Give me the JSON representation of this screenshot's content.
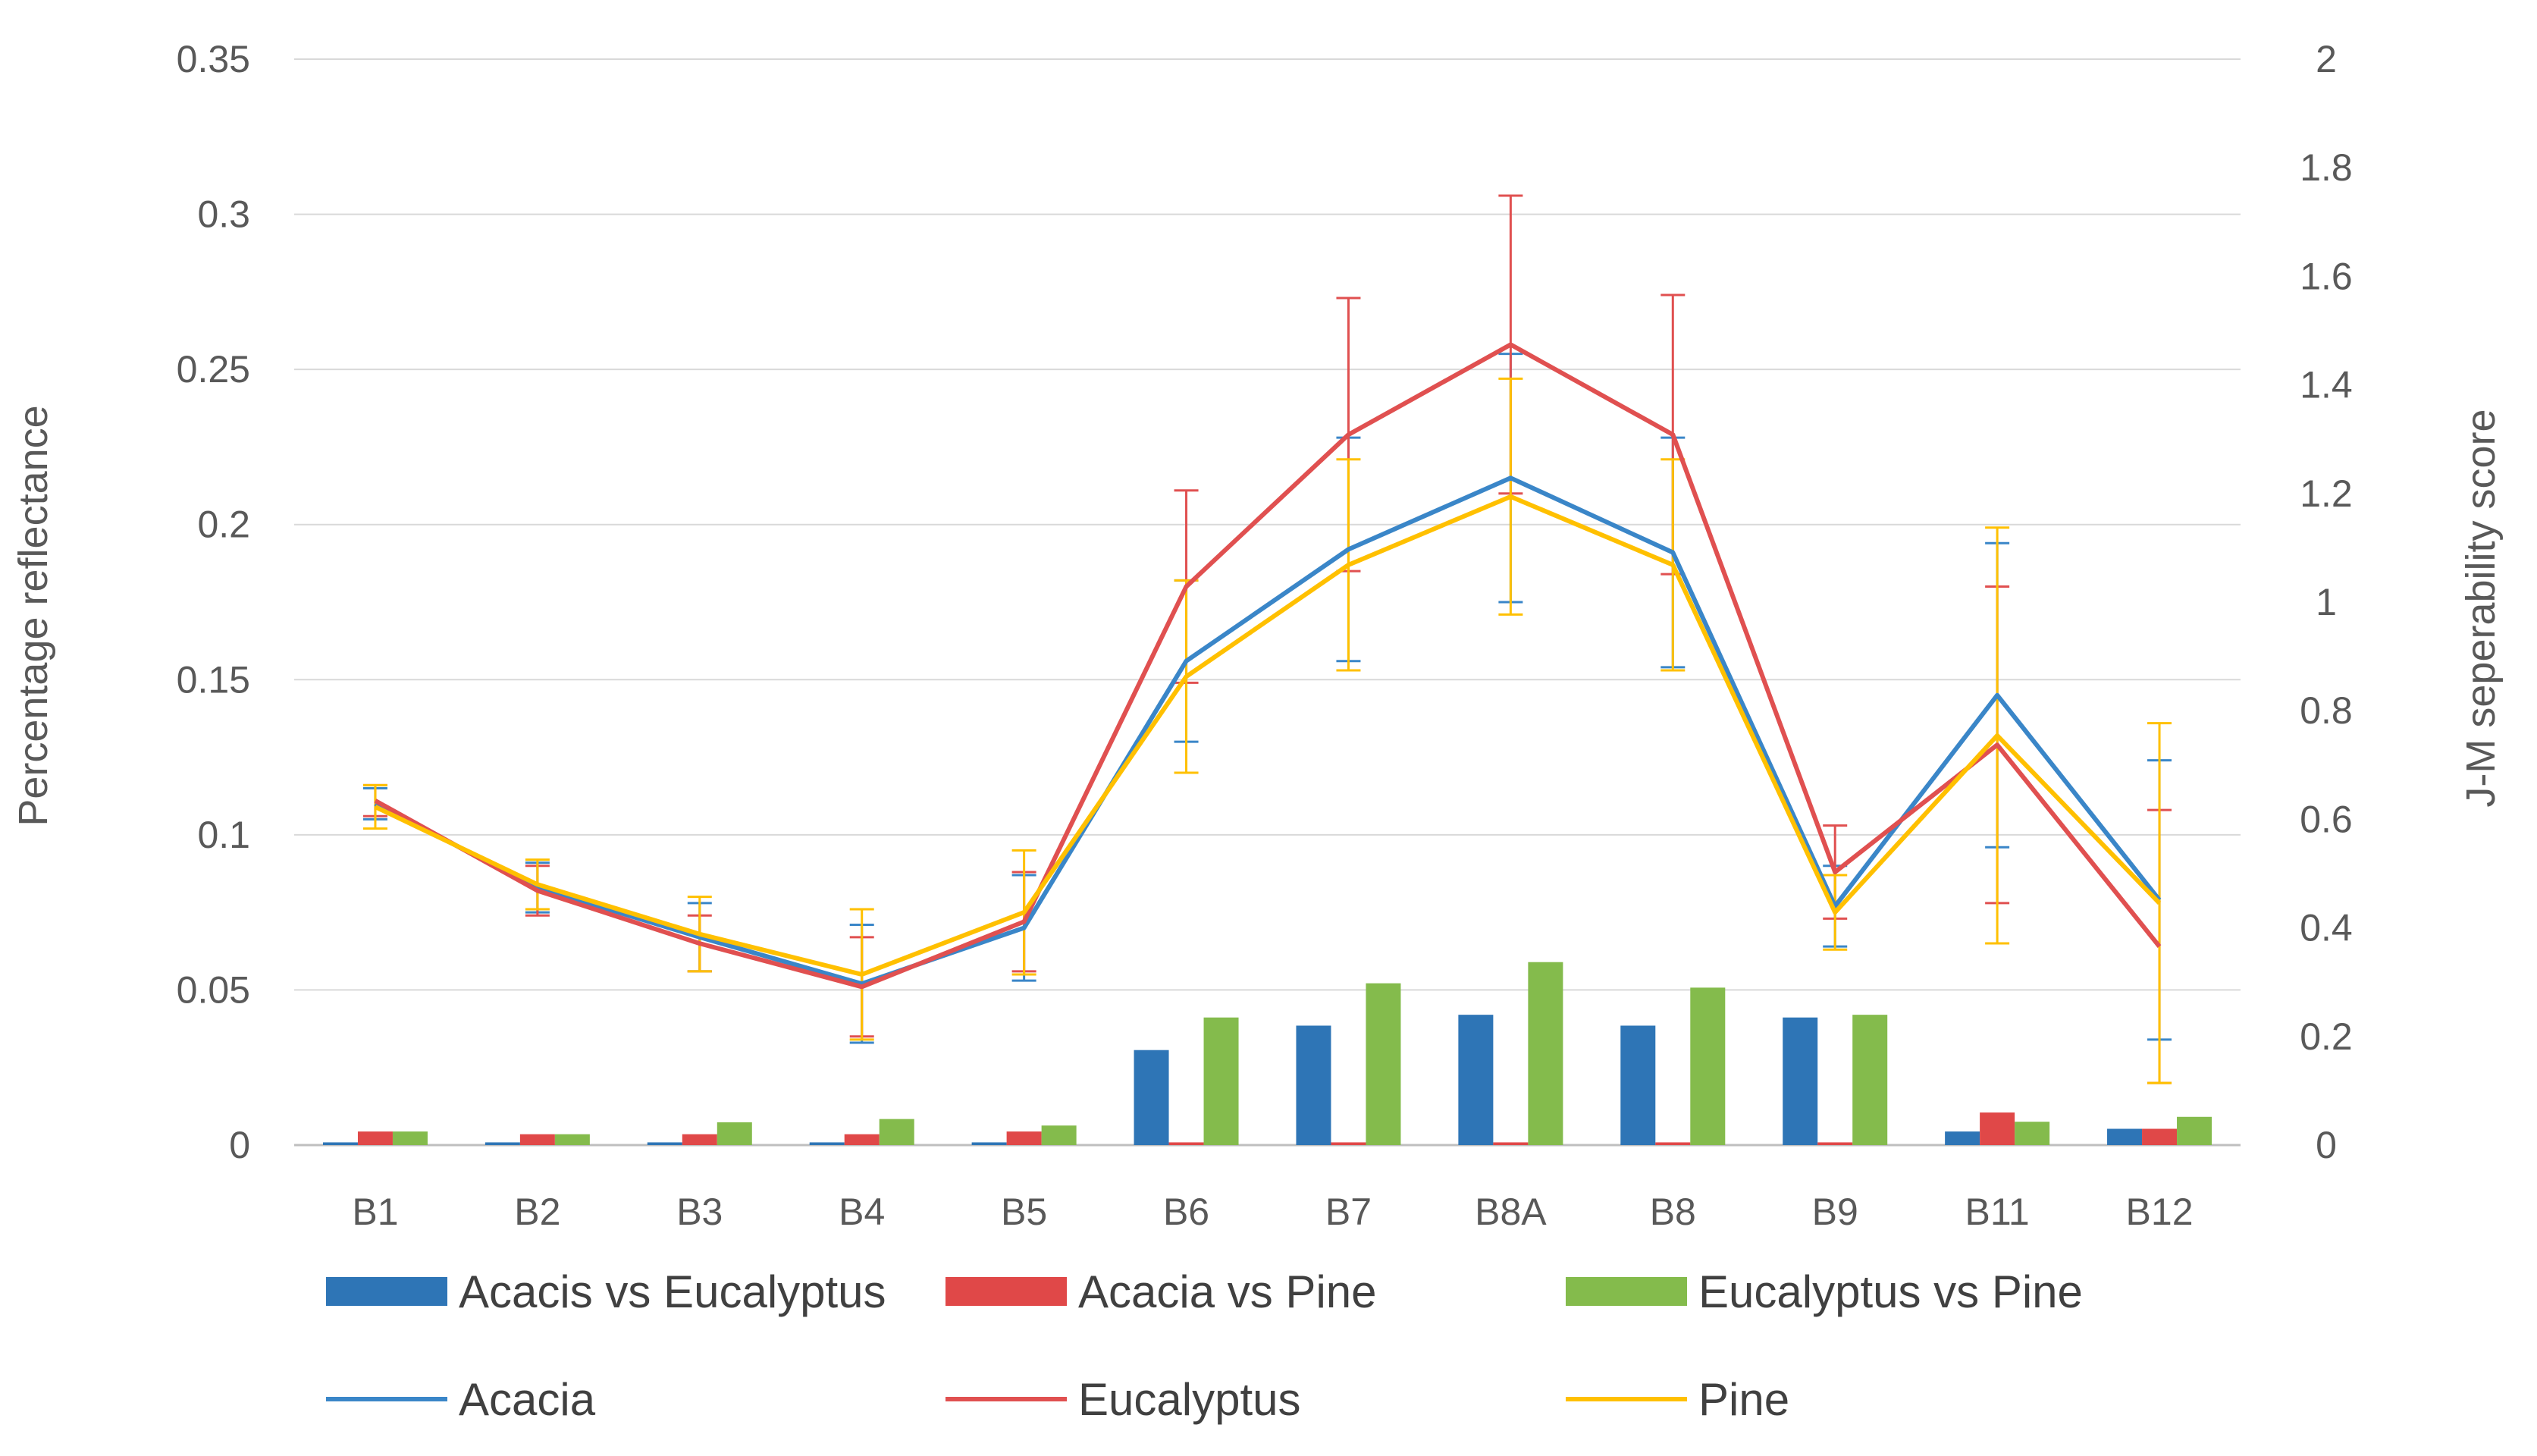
{
  "chart_data": {
    "type": "bar+line",
    "categories": [
      "B1",
      "B2",
      "B3",
      "B4",
      "B5",
      "B6",
      "B7",
      "B8A",
      "B8",
      "B9",
      "B11",
      "B12"
    ],
    "left_axis": {
      "label": "Percentage reflectance",
      "ylim": [
        0,
        0.35
      ],
      "ticks": [
        "0",
        "0.05",
        "0.1",
        "0.15",
        "0.2",
        "0.25",
        "0.3",
        "0.35"
      ]
    },
    "right_axis": {
      "label": "J-M seperability score",
      "ylim": [
        0,
        2
      ],
      "ticks": [
        "0",
        "0.2",
        "0.4",
        "0.6",
        "0.8",
        "1",
        "1.2",
        "1.4",
        "1.6",
        "1.8",
        "2"
      ]
    },
    "bar_series": [
      {
        "name": "Acacis vs Eucalyptus",
        "color": "#2E75B6",
        "values": [
          0.005,
          0.005,
          0.005,
          0.005,
          0.005,
          0.175,
          0.22,
          0.24,
          0.22,
          0.235,
          0.025,
          0.03
        ]
      },
      {
        "name": "Acacia vs Pine",
        "color": "#E04848",
        "values": [
          0.025,
          0.02,
          0.02,
          0.02,
          0.025,
          0.005,
          0.005,
          0.005,
          0.005,
          0.005,
          0.06,
          0.03
        ]
      },
      {
        "name": "Eucalyptus vs Pine",
        "color": "#84BB4C",
        "values": [
          0.025,
          0.02,
          0.042,
          0.048,
          0.036,
          0.235,
          0.298,
          0.337,
          0.29,
          0.24,
          0.043,
          0.052
        ]
      }
    ],
    "line_series": [
      {
        "name": "Acacia",
        "color": "#3A86C8",
        "values": [
          0.11,
          0.083,
          0.067,
          0.052,
          0.07,
          0.156,
          0.192,
          0.215,
          0.191,
          0.077,
          0.145,
          0.079
        ],
        "errors": [
          0.005,
          0.008,
          0.011,
          0.019,
          0.017,
          0.026,
          0.036,
          0.04,
          0.037,
          0.013,
          0.049,
          0.045
        ]
      },
      {
        "name": "Eucalyptus",
        "color": "#E05050",
        "values": [
          0.111,
          0.082,
          0.065,
          0.051,
          0.072,
          0.18,
          0.229,
          0.258,
          0.229,
          0.088,
          0.129,
          0.064
        ],
        "errors": [
          0.005,
          0.008,
          0.009,
          0.016,
          0.016,
          0.031,
          0.044,
          0.048,
          0.045,
          0.015,
          0.051,
          0.044
        ]
      },
      {
        "name": "Pine",
        "color": "#FFC000",
        "values": [
          0.109,
          0.084,
          0.068,
          0.055,
          0.075,
          0.151,
          0.187,
          0.209,
          0.187,
          0.075,
          0.132,
          0.078
        ],
        "errors": [
          0.007,
          0.008,
          0.012,
          0.021,
          0.02,
          0.031,
          0.034,
          0.038,
          0.034,
          0.012,
          0.067,
          0.058
        ]
      }
    ]
  }
}
